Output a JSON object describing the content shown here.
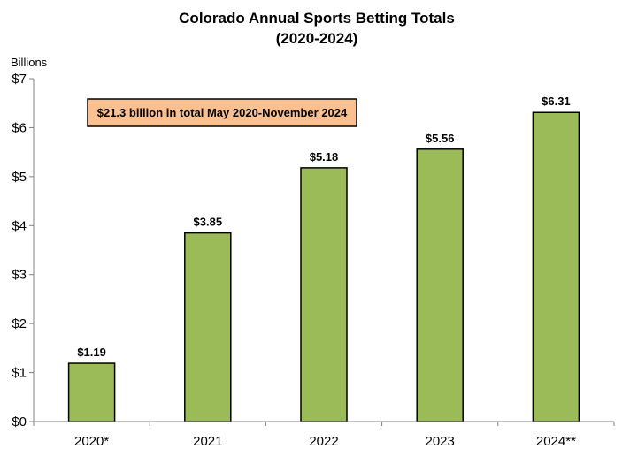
{
  "chart_data": {
    "type": "bar",
    "title": "Colorado Annual Sports Betting Totals",
    "subtitle": "(2020-2024)",
    "ylabel": "Billions",
    "categories": [
      "2020*",
      "2021",
      "2022",
      "2023",
      "2024**"
    ],
    "values": [
      1.19,
      3.85,
      5.18,
      5.56,
      6.31
    ],
    "data_labels": [
      "$1.19",
      "$3.85",
      "$5.18",
      "$5.56",
      "$6.31"
    ],
    "y_ticks": [
      0,
      1,
      2,
      3,
      4,
      5,
      6,
      7
    ],
    "y_tick_labels": [
      "$0",
      "$1",
      "$2",
      "$3",
      "$4",
      "$5",
      "$6",
      "$7"
    ],
    "ylim": [
      0,
      7
    ],
    "grid": false,
    "legend": "none",
    "annotation": "$21.3  billion in total May 2020-November 2024",
    "colors": {
      "bar_fill": "#9BBB59",
      "bar_stroke": "#000000",
      "annotation_fill": "#FAC090",
      "axis": "#808080"
    }
  }
}
